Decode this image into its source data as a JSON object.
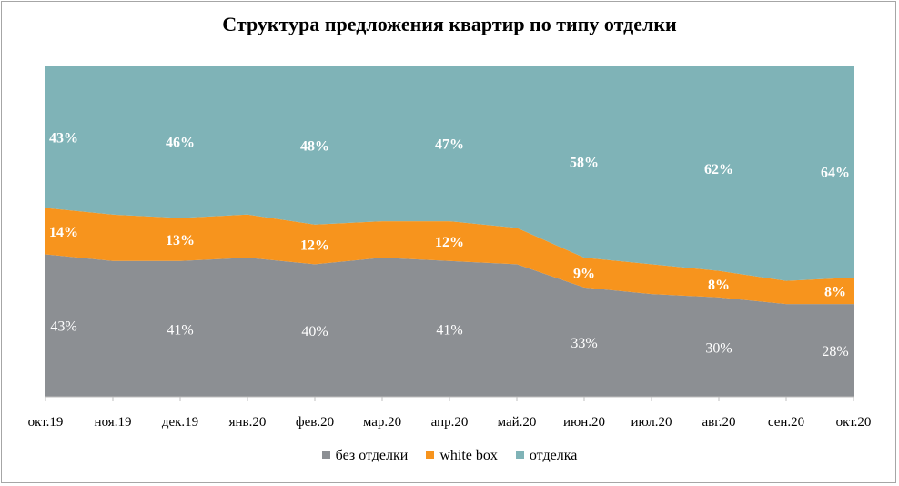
{
  "chart_data": {
    "type": "area",
    "stacked": true,
    "title": "Структура  предложения квартир по типу отделки",
    "categories": [
      "окт.19",
      "ноя.19",
      "дек.19",
      "янв.20",
      "фев.20",
      "мар.20",
      "апр.20",
      "май.20",
      "июн.20",
      "июл.20",
      "авг.20",
      "сен.20",
      "окт.20"
    ],
    "series": [
      {
        "name": "без отделки",
        "color": "#8c8f93",
        "values": [
          43,
          41,
          41,
          42,
          40,
          42,
          41,
          40,
          33,
          31,
          30,
          28,
          28
        ],
        "labels": [
          "43%",
          null,
          "41%",
          null,
          "40%",
          null,
          "41%",
          null,
          "33%",
          null,
          "30%",
          null,
          "28%"
        ]
      },
      {
        "name": "white box",
        "color": "#f7941d",
        "values": [
          14,
          14,
          13,
          13,
          12,
          11,
          12,
          11,
          9,
          9,
          8,
          7,
          8
        ],
        "labels": [
          "14%",
          null,
          "13%",
          null,
          "12%",
          null,
          "12%",
          null,
          "9%",
          null,
          "8%",
          null,
          "8%"
        ]
      },
      {
        "name": "отделка",
        "color": "#7fb3b7",
        "values": [
          43,
          45,
          46,
          45,
          48,
          47,
          47,
          49,
          58,
          60,
          62,
          65,
          64
        ],
        "labels": [
          "43%",
          null,
          "46%",
          null,
          "48%",
          null,
          "47%",
          null,
          "58%",
          null,
          "62%",
          null,
          "64%"
        ]
      }
    ],
    "ylim": [
      0,
      100
    ],
    "legend": "bottom"
  }
}
